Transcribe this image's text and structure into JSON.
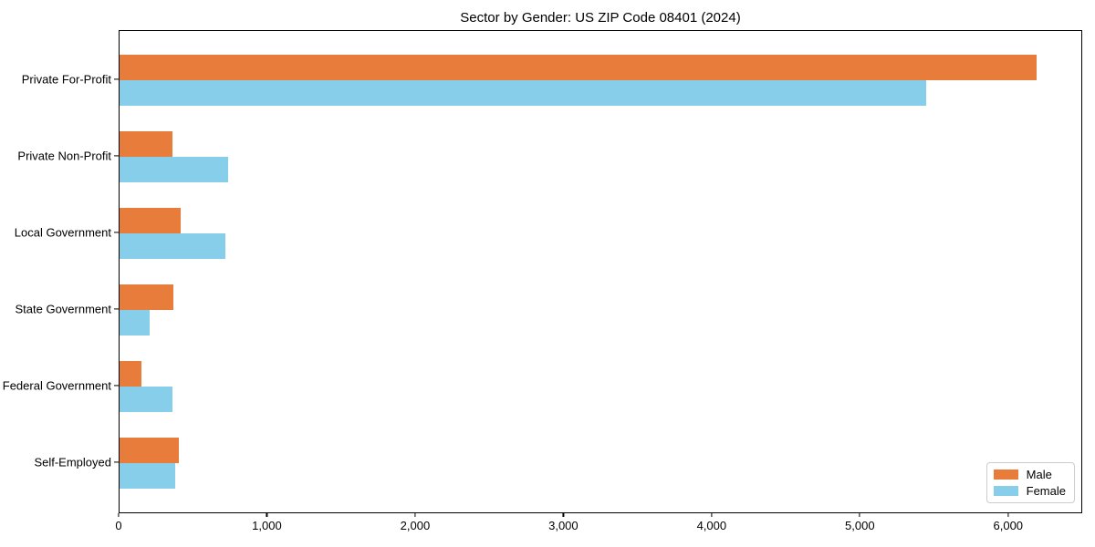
{
  "chart_data": {
    "type": "bar",
    "orientation": "horizontal",
    "title": "Sector by Gender: US ZIP Code 08401 (2024)",
    "xlabel": "",
    "ylabel": "",
    "categories": [
      "Private For-Profit",
      "Private Non-Profit",
      "Local Government",
      "State Government",
      "Federal Government",
      "Self-Employed"
    ],
    "series": [
      {
        "name": "Male",
        "color": "#e87d3b",
        "values": [
          6185,
          355,
          410,
          360,
          150,
          400
        ]
      },
      {
        "name": "Female",
        "color": "#87ceeb",
        "values": [
          5440,
          730,
          715,
          205,
          355,
          375
        ]
      }
    ],
    "xlim": [
      0,
      6500
    ],
    "x_ticks": {
      "values": [
        0,
        1000,
        2000,
        3000,
        4000,
        5000,
        6000
      ],
      "labels": [
        "0",
        "1,000",
        "2,000",
        "3,000",
        "4,000",
        "5,000",
        "6,000"
      ]
    },
    "legend": {
      "position": "lower right",
      "entries": [
        "Male",
        "Female"
      ]
    },
    "grid": false,
    "colors": {
      "axis": "#000000",
      "background": "#ffffff",
      "legend_border": "#cccccc"
    }
  }
}
